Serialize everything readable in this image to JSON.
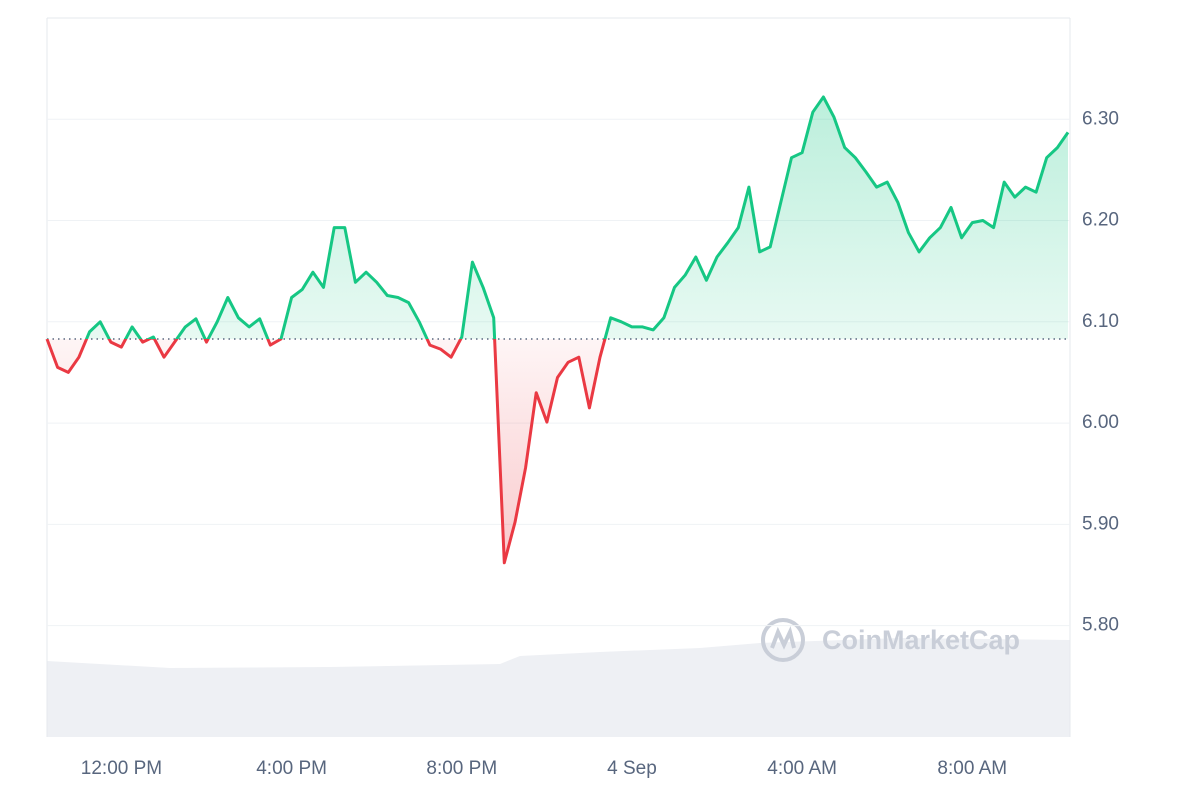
{
  "chart_data": {
    "type": "line",
    "categories": [
      null,
      null,
      null,
      null,
      null,
      null,
      null,
      "12:00 PM",
      null,
      null,
      null,
      null,
      null,
      null,
      null,
      null,
      null,
      null,
      null,
      null,
      null,
      null,
      null,
      "4:00 PM",
      null,
      null,
      null,
      null,
      null,
      null,
      null,
      null,
      null,
      null,
      null,
      null,
      null,
      null,
      null,
      "8:00 PM",
      null,
      null,
      null,
      null,
      null,
      null,
      null,
      null,
      null,
      null,
      null,
      null,
      null,
      null,
      null,
      "4 Sep",
      null,
      null,
      null,
      null,
      null,
      null,
      null,
      null,
      null,
      null,
      null,
      null,
      null,
      null,
      null,
      "4:00 AM",
      null,
      null,
      null,
      null,
      null,
      null,
      null,
      null,
      null,
      null,
      null,
      null,
      null,
      null,
      null,
      "8:00 AM",
      null,
      null,
      null,
      null,
      null,
      null,
      null,
      null,
      null
    ],
    "values": [
      6.083,
      6.055,
      6.05,
      6.065,
      6.09,
      6.1,
      6.08,
      6.075,
      6.095,
      6.08,
      6.085,
      6.065,
      6.08,
      6.095,
      6.103,
      6.08,
      6.1,
      6.124,
      6.104,
      6.095,
      6.103,
      6.077,
      6.083,
      6.124,
      6.132,
      6.149,
      6.134,
      6.193,
      6.193,
      6.139,
      6.149,
      6.139,
      6.126,
      6.124,
      6.119,
      6.1,
      6.077,
      6.073,
      6.065,
      6.085,
      6.159,
      6.134,
      6.104,
      5.862,
      5.902,
      5.956,
      6.03,
      6.001,
      6.045,
      6.06,
      6.065,
      6.015,
      6.065,
      6.104,
      6.1,
      6.095,
      6.095,
      6.092,
      6.104,
      6.134,
      6.146,
      6.164,
      6.141,
      6.164,
      6.178,
      6.193,
      6.233,
      6.169,
      6.174,
      6.218,
      6.262,
      6.267,
      6.307,
      6.322,
      6.302,
      6.272,
      6.262,
      6.248,
      6.233,
      6.238,
      6.218,
      6.188,
      6.169,
      6.183,
      6.193,
      6.213,
      6.183,
      6.198,
      6.2,
      6.193,
      6.238,
      6.223,
      6.233,
      6.228,
      6.262,
      6.272,
      6.287
    ],
    "baseline": 6.083,
    "color_up": "#16c784",
    "color_down": "#ea3943",
    "ylim": [
      5.69,
      6.4
    ],
    "yticks": [
      {
        "value": 5.8,
        "label": "5.80"
      },
      {
        "value": 5.9,
        "label": "5.90"
      },
      {
        "value": 6.0,
        "label": "6.00"
      },
      {
        "value": 6.1,
        "label": "6.10"
      },
      {
        "value": 6.2,
        "label": "6.20"
      },
      {
        "value": 6.3,
        "label": "6.30"
      }
    ],
    "grid": true,
    "watermark": "CoinMarketCap"
  }
}
